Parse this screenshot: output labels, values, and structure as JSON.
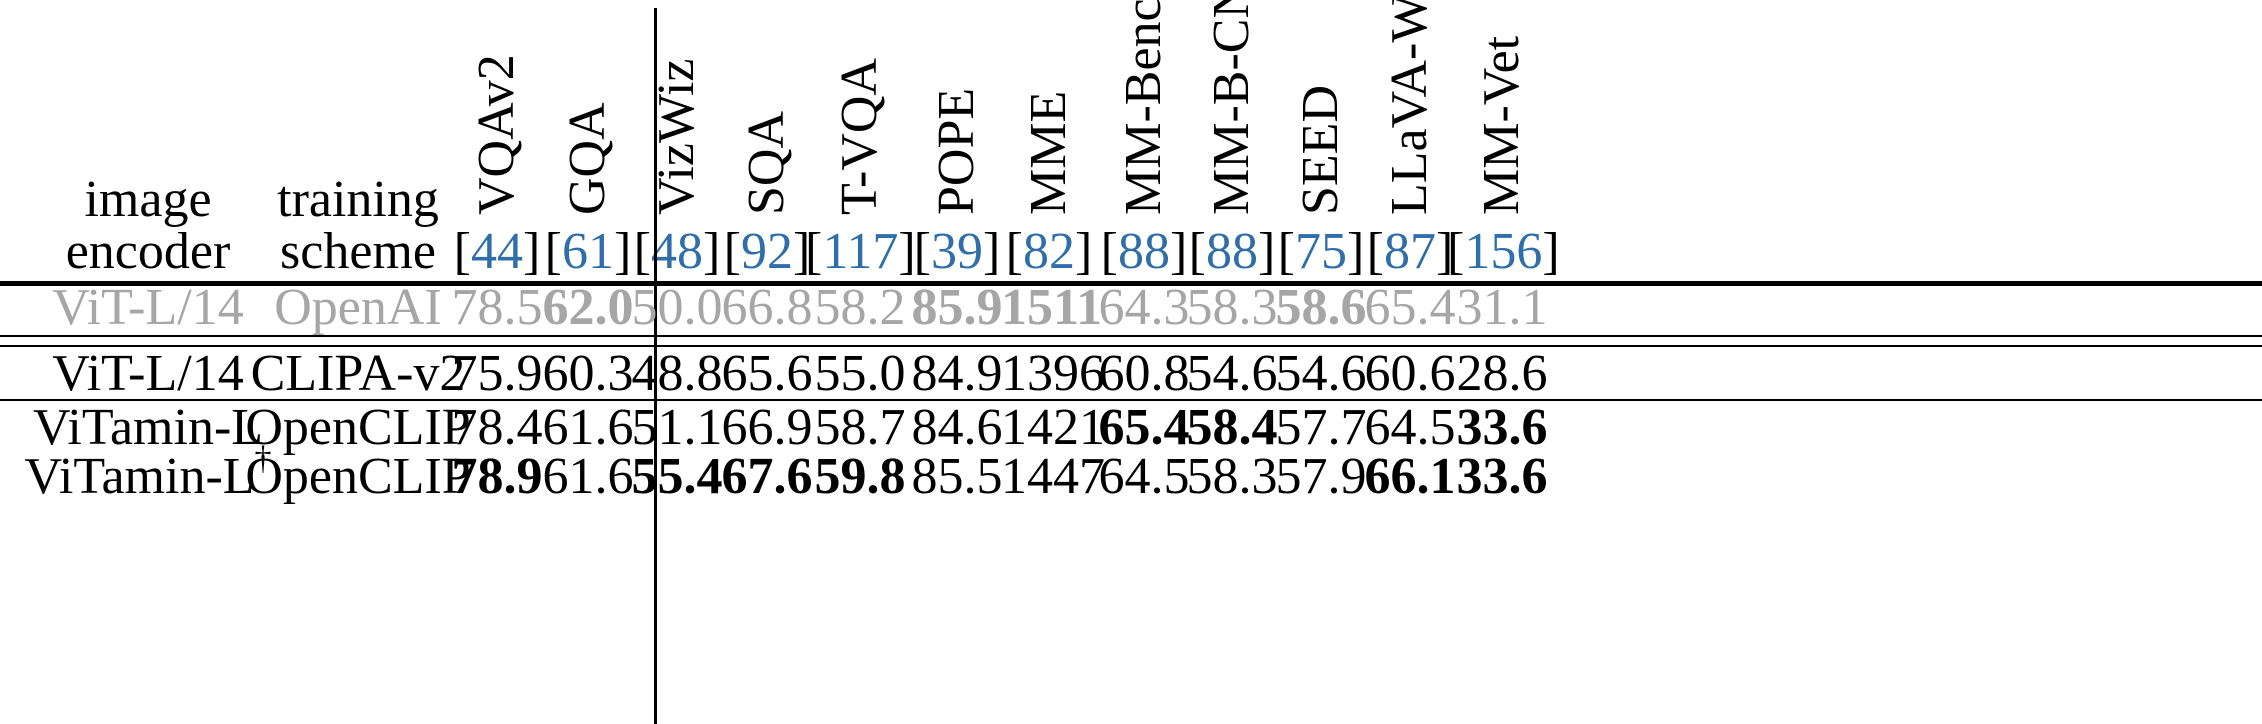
{
  "header": {
    "col1": [
      "image",
      "encoder"
    ],
    "col2": [
      "training",
      "scheme"
    ],
    "benchmarks": [
      {
        "name": "VQAv2",
        "cite": "44"
      },
      {
        "name": "GQA",
        "cite": "61"
      },
      {
        "name": "VizWiz",
        "cite": "48"
      },
      {
        "name": "SQA",
        "cite": "92"
      },
      {
        "name": "T-VQA",
        "cite": "117"
      },
      {
        "name": "POPE",
        "cite": "39"
      },
      {
        "name": "MME",
        "cite": "82"
      },
      {
        "name": "MM-Bench",
        "cite": "88"
      },
      {
        "name": "MM-B-CN",
        "cite": "88"
      },
      {
        "name": "SEED",
        "cite": "75"
      },
      {
        "name": "LLaVA-Wild",
        "cite": "87"
      },
      {
        "name": "MM-Vet",
        "cite": "156"
      }
    ]
  },
  "rows": [
    {
      "encoder": "ViT-L/14",
      "encoder_sup": "",
      "scheme": "OpenAI",
      "style": "gray",
      "values": [
        "78.5",
        "62.0",
        "50.0",
        "66.8",
        "58.2",
        "85.9",
        "1511",
        "64.3",
        "58.3",
        "58.6",
        "65.4",
        "31.1"
      ],
      "bold": [
        false,
        true,
        false,
        false,
        false,
        true,
        true,
        false,
        false,
        true,
        false,
        false
      ]
    },
    {
      "encoder": "ViT-L/14",
      "encoder_sup": "",
      "scheme": "CLIPA-v2",
      "style": "normal",
      "values": [
        "75.9",
        "60.3",
        "48.8",
        "65.6",
        "55.0",
        "84.9",
        "1396",
        "60.8",
        "54.6",
        "54.6",
        "60.6",
        "28.6"
      ],
      "bold": [
        false,
        false,
        false,
        false,
        false,
        false,
        false,
        false,
        false,
        false,
        false,
        false
      ]
    },
    {
      "encoder": "ViTamin-L",
      "encoder_sup": "",
      "scheme": "OpenCLIP",
      "style": "normal",
      "values": [
        "78.4",
        "61.6",
        "51.1",
        "66.9",
        "58.7",
        "84.6",
        "1421",
        "65.4",
        "58.4",
        "57.7",
        "64.5",
        "33.6"
      ],
      "bold": [
        false,
        false,
        false,
        false,
        false,
        false,
        false,
        true,
        true,
        false,
        false,
        true
      ]
    },
    {
      "encoder": "ViTamin-L",
      "encoder_sup": "†",
      "scheme": "OpenCLIP",
      "style": "normal",
      "values": [
        "78.9",
        "61.6",
        "55.4",
        "67.6",
        "59.8",
        "85.5",
        "1447",
        "64.5",
        "58.3",
        "57.9",
        "66.1",
        "33.6"
      ],
      "bold": [
        true,
        false,
        true,
        true,
        true,
        false,
        false,
        false,
        false,
        false,
        true,
        true
      ]
    }
  ]
}
